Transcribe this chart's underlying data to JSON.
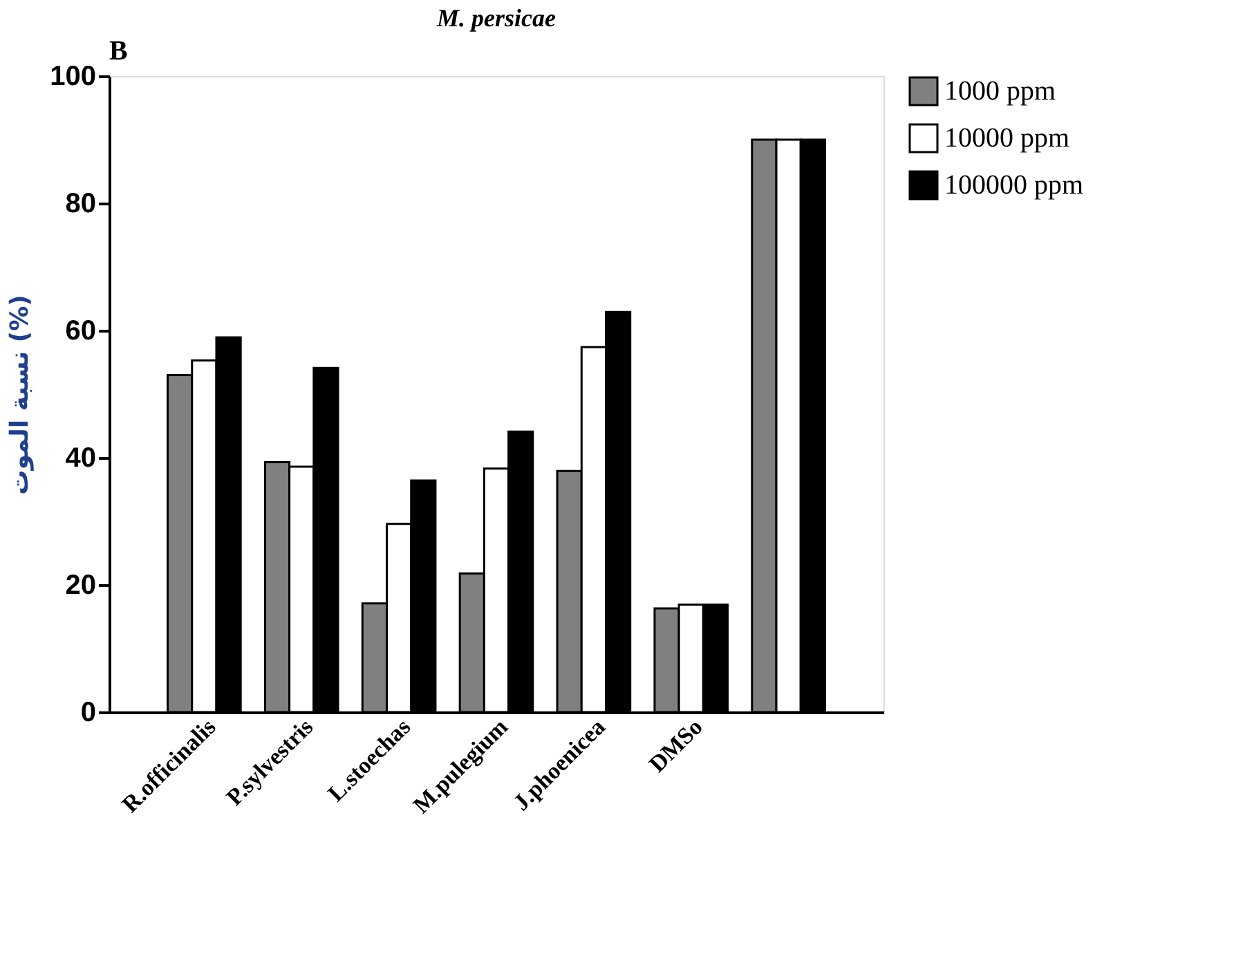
{
  "chart_data": {
    "type": "bar",
    "title": "M. persicae",
    "ylabel": "نسبة الموت (%)",
    "annotations": [
      "B"
    ],
    "categories": [
      "R.officinalis",
      "P.sylvestris",
      "L.stoechas",
      "M.pulegium",
      "J.phoenicea",
      "DMSo",
      null
    ],
    "series": [
      {
        "name": "1000 ppm",
        "color": "#808080",
        "values": [
          53.0,
          39.3,
          17.1,
          21.8,
          37.9,
          16.3,
          90.0
        ]
      },
      {
        "name": "10000 ppm",
        "color": "#ffffff",
        "values": [
          55.3,
          38.6,
          29.6,
          38.3,
          57.4,
          16.9,
          90.0
        ]
      },
      {
        "name": "100000 ppm",
        "color": "#000000",
        "values": [
          58.9,
          54.1,
          36.4,
          44.1,
          62.9,
          16.9,
          90.0
        ]
      }
    ],
    "ylim": [
      0,
      100
    ],
    "yticks": [
      0,
      20,
      40,
      60,
      80,
      100
    ],
    "grid": false,
    "legend": "top right"
  }
}
